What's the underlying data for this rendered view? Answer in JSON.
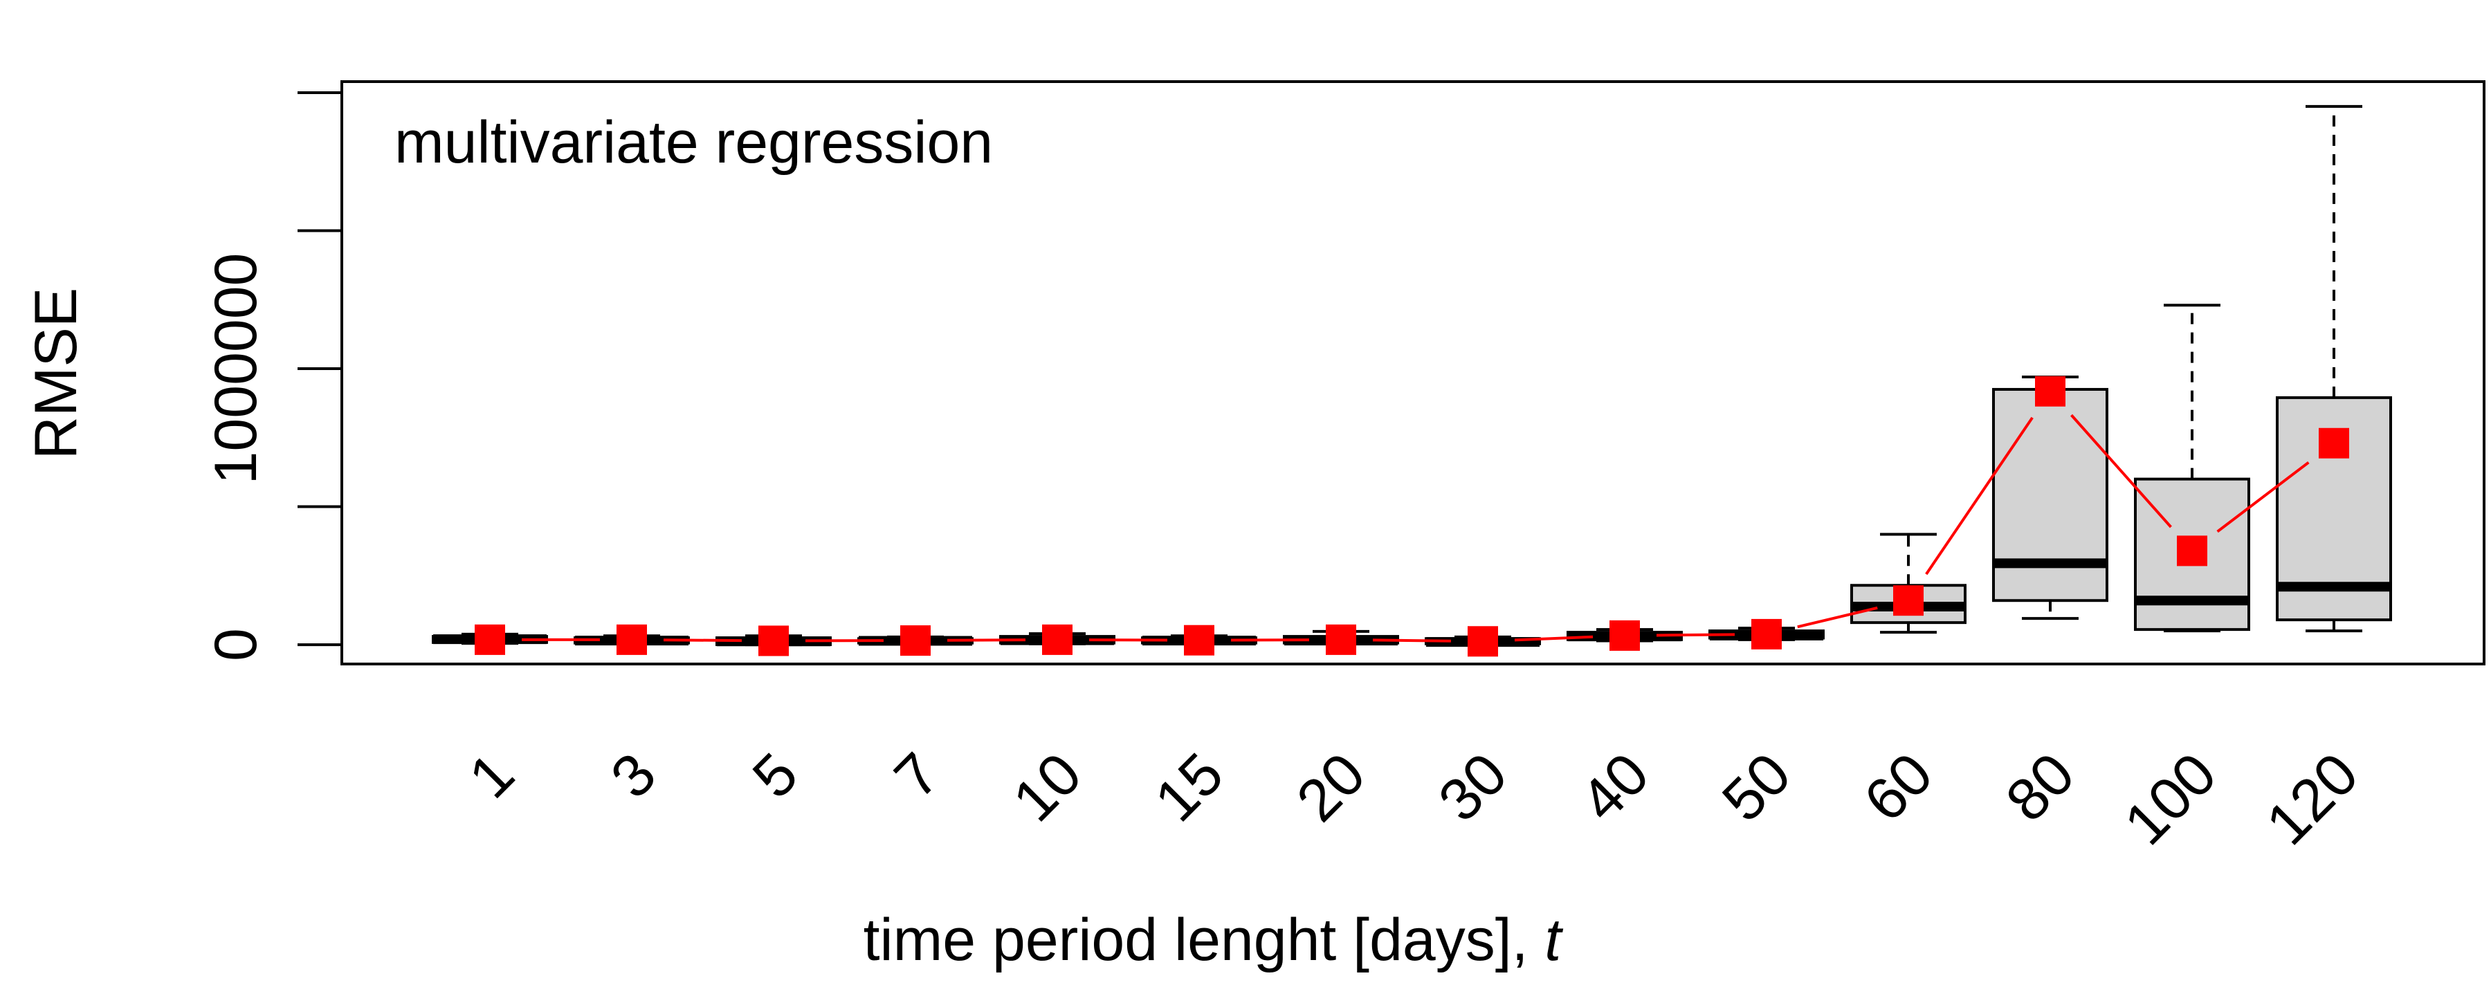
{
  "chart_data": {
    "type": "box",
    "annotation": "multivariate regression",
    "xlabel": "time period lenght [days], ",
    "xlabel_italic": "t",
    "ylabel": "RMSE",
    "ylim": [
      -70000,
      2040000
    ],
    "yticks": [
      0,
      500000,
      1000000,
      1500000,
      2000000
    ],
    "ytick_labels": [
      "0",
      "",
      "1000000",
      "",
      ""
    ],
    "categories": [
      "1",
      "3",
      "5",
      "7",
      "10",
      "15",
      "20",
      "30",
      "40",
      "50",
      "60",
      "80",
      "100",
      "120"
    ],
    "boxes": [
      {
        "min": 5000,
        "q1": 8000,
        "median": 20000,
        "q3": 30000,
        "max": 38000
      },
      {
        "min": 3000,
        "q1": 6000,
        "median": 15000,
        "q3": 25000,
        "max": 32000
      },
      {
        "min": 0,
        "q1": 0,
        "median": 12000,
        "q3": 25000,
        "max": 32000
      },
      {
        "min": 3000,
        "q1": 6000,
        "median": 14000,
        "q3": 22000,
        "max": 28000
      },
      {
        "min": 3000,
        "q1": 6000,
        "median": 16000,
        "q3": 30000,
        "max": 40000
      },
      {
        "min": 3000,
        "q1": 6000,
        "median": 15000,
        "q3": 25000,
        "max": 32000
      },
      {
        "min": 3000,
        "q1": 6000,
        "median": 15000,
        "q3": 30000,
        "max": 48000
      },
      {
        "min": 0,
        "q1": 3000,
        "median": 10000,
        "q3": 22000,
        "max": 28000
      },
      {
        "min": 14000,
        "q1": 18000,
        "median": 30000,
        "q3": 45000,
        "max": 55000
      },
      {
        "min": 18000,
        "q1": 24000,
        "median": 33000,
        "q3": 50000,
        "max": 60000
      },
      {
        "min": 45000,
        "q1": 80000,
        "median": 138000,
        "q3": 215000,
        "max": 400000
      },
      {
        "min": 95000,
        "q1": 160000,
        "median": 295000,
        "q3": 925000,
        "max": 970000
      },
      {
        "min": 50000,
        "q1": 55000,
        "median": 160000,
        "q3": 600000,
        "max": 1230000
      },
      {
        "min": 50000,
        "q1": 90000,
        "median": 210000,
        "q3": 895000,
        "max": 1950000
      }
    ],
    "means": [
      18000,
      18000,
      14000,
      15000,
      18000,
      16000,
      18000,
      12000,
      33000,
      38000,
      160000,
      918000,
      340000,
      730000
    ],
    "mean_color": "#ff0000",
    "box_fill": "#d3d3d3",
    "grid": false,
    "legend": "none"
  }
}
